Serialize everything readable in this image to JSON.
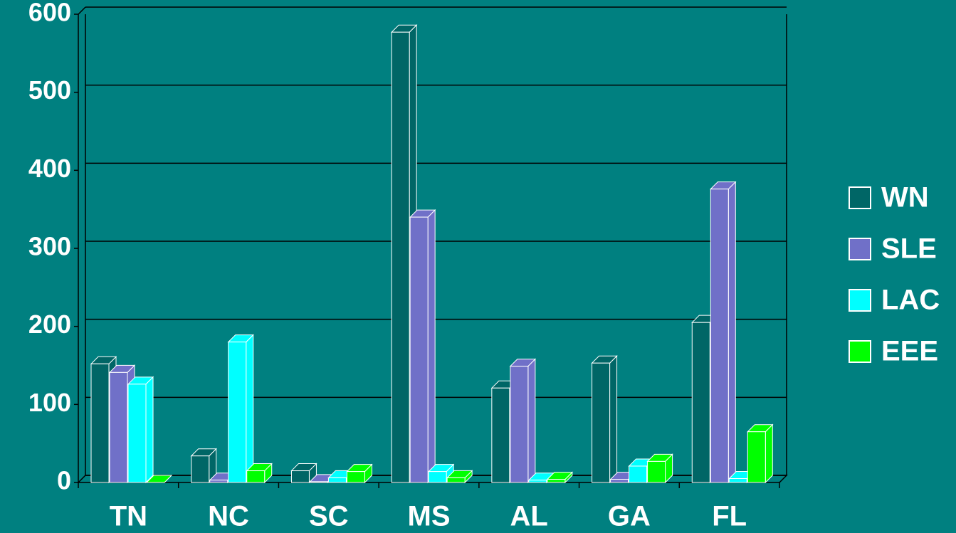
{
  "chart_data": {
    "type": "bar3d",
    "categories": [
      "TN",
      "NC",
      "SC",
      "MS",
      "AL",
      "GA",
      "FL"
    ],
    "series": [
      {
        "name": "WN",
        "color": "#006666",
        "values": [
          152,
          34,
          15,
          577,
          121,
          153,
          205
        ]
      },
      {
        "name": "SLE",
        "color": "#7070c8",
        "values": [
          141,
          3,
          1,
          340,
          149,
          4,
          376
        ]
      },
      {
        "name": "LAC",
        "color": "#00ffff",
        "values": [
          126,
          180,
          6,
          14,
          3,
          21,
          5
        ]
      },
      {
        "name": "EEE",
        "color": "#00ff00",
        "values": [
          0,
          15,
          14,
          6,
          4,
          27,
          65
        ]
      }
    ],
    "ylim": [
      0,
      600
    ],
    "yticks": [
      0,
      100,
      200,
      300,
      400,
      500,
      600
    ],
    "grid": true,
    "legend": "right"
  }
}
